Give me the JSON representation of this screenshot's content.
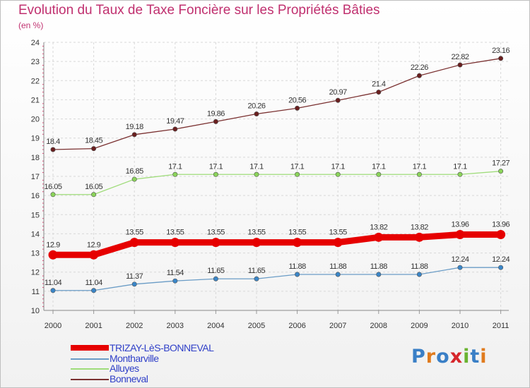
{
  "title": "Evolution du Taux de Taxe Foncière sur les Propriétés Bâties",
  "subtitle": "(en %)",
  "logo": {
    "text": "Proxiti",
    "colors": [
      "#3a7fc6",
      "#e07b1e",
      "#3a7fc6",
      "#d6262b",
      "#6ab330",
      "#3a7fc6",
      "#e07b1e"
    ]
  },
  "chart_data": {
    "type": "line",
    "title": "Evolution du Taux de Taxe Foncière sur les Propriétés Bâties",
    "ylabel": "(en %)",
    "xlabel": "",
    "x": [
      "2000",
      "2001",
      "2002",
      "2003",
      "2004",
      "2005",
      "2006",
      "2007",
      "2008",
      "2009",
      "2010",
      "2011"
    ],
    "ylim": [
      10,
      24
    ],
    "yticks": [
      "10",
      "11",
      "12",
      "13",
      "14",
      "15",
      "16",
      "17",
      "18",
      "19",
      "20",
      "21",
      "22",
      "23",
      "24"
    ],
    "grid": true,
    "legend_position": "bottom-left",
    "series": [
      {
        "name": "TRIZAY-LèS-BONNEVAL",
        "color": "#e60000",
        "marker": "#e60000",
        "width": 9,
        "values": [
          12.9,
          12.9,
          13.55,
          13.55,
          13.55,
          13.55,
          13.55,
          13.55,
          13.82,
          13.82,
          13.96,
          13.96
        ],
        "labels": [
          "12.9",
          "12.9",
          "13.55",
          "13.55",
          "13.55",
          "13.55",
          "13.55",
          "13.55",
          "13.82",
          "13.82",
          "13.96",
          "13.96"
        ]
      },
      {
        "name": "Montharville",
        "color": "#6a9cc6",
        "marker": "#3a86c8",
        "width": 1.3,
        "values": [
          11.04,
          11.04,
          11.37,
          11.54,
          11.65,
          11.65,
          11.88,
          11.88,
          11.88,
          11.88,
          12.24,
          12.24
        ],
        "labels": [
          "11.04",
          "11.04",
          "11.37",
          "11.54",
          "11.65",
          "11.65",
          "11.88",
          "11.88",
          "11.88",
          "11.88",
          "12.24",
          "12.24"
        ]
      },
      {
        "name": "Alluyes",
        "color": "#9fdc7a",
        "marker": "#8bd45a",
        "width": 1.3,
        "values": [
          16.05,
          16.05,
          16.85,
          17.1,
          17.1,
          17.1,
          17.1,
          17.1,
          17.1,
          17.1,
          17.1,
          17.27
        ],
        "labels": [
          "16.05",
          "16.05",
          "16.85",
          "17.1",
          "17.1",
          "17.1",
          "17.1",
          "17.1",
          "17.1",
          "17.1",
          "17.1",
          "17.27"
        ]
      },
      {
        "name": "Bonneval",
        "color": "#7a3030",
        "marker": "#6a1f1f",
        "width": 1.3,
        "values": [
          18.4,
          18.45,
          19.18,
          19.47,
          19.86,
          20.26,
          20.56,
          20.97,
          21.4,
          22.26,
          22.82,
          23.16
        ],
        "labels": [
          "18.4",
          "18.45",
          "19.18",
          "19.47",
          "19.86",
          "20.26",
          "20.56",
          "20.97",
          "21.4",
          "22.26",
          "22.82",
          "23.16"
        ]
      }
    ]
  }
}
